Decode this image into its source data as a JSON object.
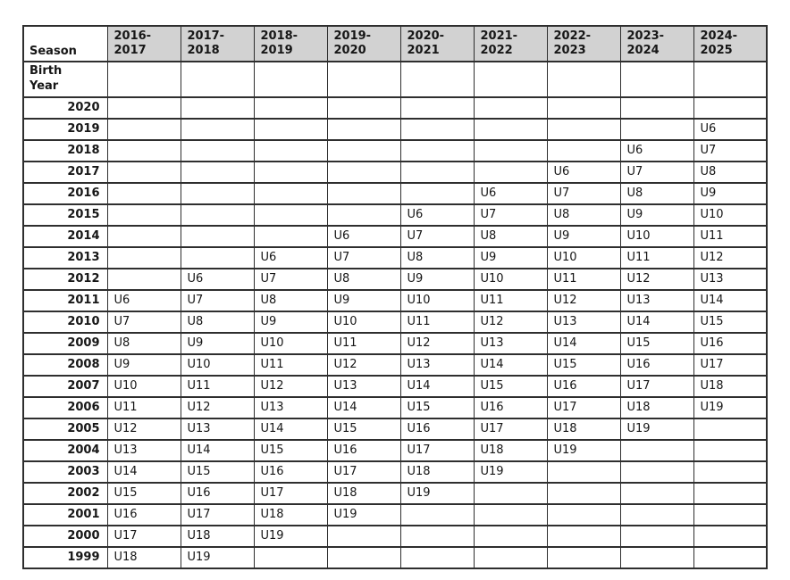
{
  "table": {
    "corner_header": "Season",
    "row_axis_header": "Birth Year",
    "season_headers": [
      "2016-2017",
      "2017-2018",
      "2018-2019",
      "2019-2020",
      "2020-2021",
      "2021-2022",
      "2022-2023",
      "2023-2024",
      "2024-2025"
    ],
    "rows": [
      {
        "year": "2020",
        "cells": [
          "",
          "",
          "",
          "",
          "",
          "",
          "",
          "",
          ""
        ]
      },
      {
        "year": "2019",
        "cells": [
          "",
          "",
          "",
          "",
          "",
          "",
          "",
          "",
          "U6"
        ]
      },
      {
        "year": "2018",
        "cells": [
          "",
          "",
          "",
          "",
          "",
          "",
          "",
          "U6",
          "U7"
        ]
      },
      {
        "year": "2017",
        "cells": [
          "",
          "",
          "",
          "",
          "",
          "",
          "U6",
          "U7",
          "U8"
        ]
      },
      {
        "year": "2016",
        "cells": [
          "",
          "",
          "",
          "",
          "",
          "U6",
          "U7",
          "U8",
          "U9"
        ]
      },
      {
        "year": "2015",
        "cells": [
          "",
          "",
          "",
          "",
          "U6",
          "U7",
          "U8",
          "U9",
          "U10"
        ]
      },
      {
        "year": "2014",
        "cells": [
          "",
          "",
          "",
          "U6",
          "U7",
          "U8",
          "U9",
          "U10",
          "U11"
        ]
      },
      {
        "year": "2013",
        "cells": [
          "",
          "",
          "U6",
          "U7",
          "U8",
          "U9",
          "U10",
          "U11",
          "U12"
        ]
      },
      {
        "year": "2012",
        "cells": [
          "",
          "U6",
          "U7",
          "U8",
          "U9",
          "U10",
          "U11",
          "U12",
          "U13"
        ]
      },
      {
        "year": "2011",
        "cells": [
          "U6",
          "U7",
          "U8",
          "U9",
          "U10",
          "U11",
          "U12",
          "U13",
          "U14"
        ]
      },
      {
        "year": "2010",
        "cells": [
          "U7",
          "U8",
          "U9",
          "U10",
          "U11",
          "U12",
          "U13",
          "U14",
          "U15"
        ]
      },
      {
        "year": "2009",
        "cells": [
          "U8",
          "U9",
          "U10",
          "U11",
          "U12",
          "U13",
          "U14",
          "U15",
          "U16"
        ]
      },
      {
        "year": "2008",
        "cells": [
          "U9",
          "U10",
          "U11",
          "U12",
          "U13",
          "U14",
          "U15",
          "U16",
          "U17"
        ]
      },
      {
        "year": "2007",
        "cells": [
          "U10",
          "U11",
          "U12",
          "U13",
          "U14",
          "U15",
          "U16",
          "U17",
          "U18"
        ]
      },
      {
        "year": "2006",
        "cells": [
          "U11",
          "U12",
          "U13",
          "U14",
          "U15",
          "U16",
          "U17",
          "U18",
          "U19"
        ]
      },
      {
        "year": "2005",
        "cells": [
          "U12",
          "U13",
          "U14",
          "U15",
          "U16",
          "U17",
          "U18",
          "U19",
          ""
        ]
      },
      {
        "year": "2004",
        "cells": [
          "U13",
          "U14",
          "U15",
          "U16",
          "U17",
          "U18",
          "U19",
          "",
          ""
        ]
      },
      {
        "year": "2003",
        "cells": [
          "U14",
          "U15",
          "U16",
          "U17",
          "U18",
          "U19",
          "",
          "",
          ""
        ]
      },
      {
        "year": "2002",
        "cells": [
          "U15",
          "U16",
          "U17",
          "U18",
          "U19",
          "",
          "",
          "",
          ""
        ]
      },
      {
        "year": "2001",
        "cells": [
          "U16",
          "U17",
          "U18",
          "U19",
          "",
          "",
          "",
          "",
          ""
        ]
      },
      {
        "year": "2000",
        "cells": [
          "U17",
          "U18",
          "U19",
          "",
          "",
          "",
          "",
          "",
          ""
        ]
      },
      {
        "year": "1999",
        "cells": [
          "U18",
          "U19",
          "",
          "",
          "",
          "",
          "",
          "",
          ""
        ]
      }
    ]
  }
}
